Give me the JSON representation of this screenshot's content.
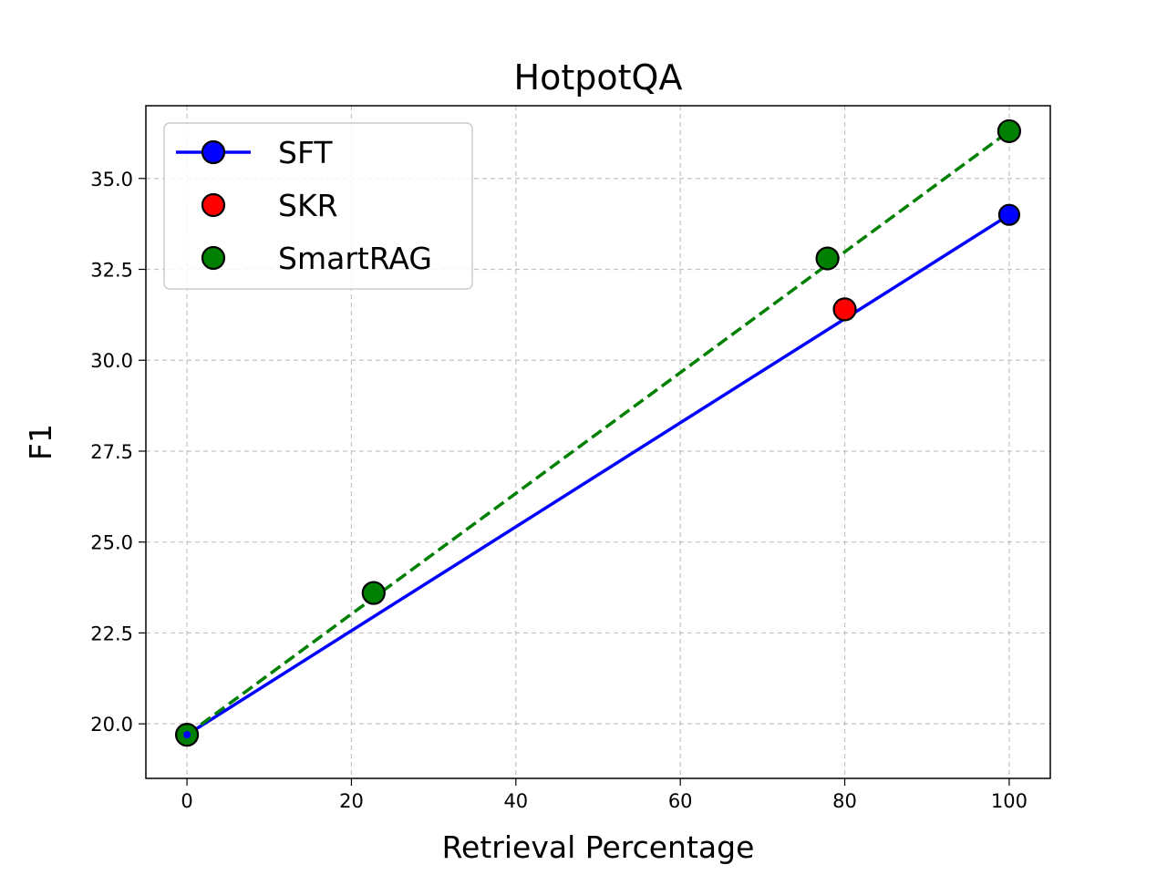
{
  "chart_data": {
    "type": "scatter",
    "title": "HotpotQA",
    "xlabel": "Retrieval Percentage",
    "ylabel": "F1",
    "xlim": [
      -5,
      105
    ],
    "ylim": [
      18.5,
      37.0
    ],
    "xticks": [
      0,
      20,
      40,
      60,
      80,
      100
    ],
    "xtick_labels": [
      "0",
      "20",
      "40",
      "60",
      "80",
      "100"
    ],
    "yticks": [
      20.0,
      22.5,
      25.0,
      27.5,
      30.0,
      32.5,
      35.0
    ],
    "ytick_labels": [
      "20.0",
      "22.5",
      "25.0",
      "27.5",
      "30.0",
      "32.5",
      "35.0"
    ],
    "grid": true,
    "legend_position": "top-left",
    "series": [
      {
        "name": "SFT",
        "kind": "line-with-markers",
        "color": "#0000ff",
        "line_style": "solid",
        "x": [
          0,
          100
        ],
        "y": [
          19.7,
          34.0
        ]
      },
      {
        "name": "SKR",
        "kind": "scatter",
        "color": "#ff0000",
        "x": [
          80
        ],
        "y": [
          31.4
        ]
      },
      {
        "name": "SmartRAG",
        "kind": "scatter",
        "color": "#008000",
        "x": [
          0,
          22.7,
          77.9,
          100
        ],
        "y": [
          19.7,
          23.6,
          32.8,
          36.3
        ]
      }
    ],
    "trend_lines": [
      {
        "for": "SmartRAG",
        "color": "#008000",
        "line_style": "dashed",
        "x": [
          0,
          100
        ],
        "y": [
          19.7,
          36.3
        ]
      }
    ],
    "colors": {
      "marker_edge": "#000000",
      "grid": "#b0b0b0",
      "axes": "#000000"
    }
  }
}
